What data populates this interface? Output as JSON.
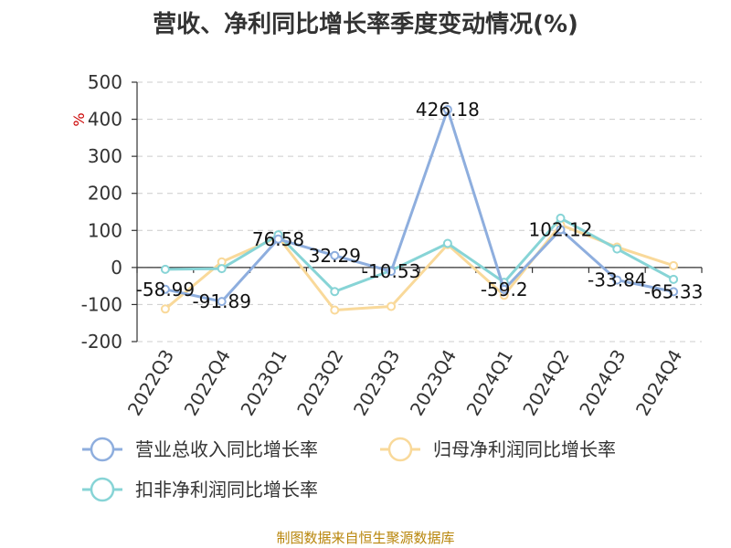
{
  "chart_data": {
    "type": "line",
    "title": "营收、净利同比增长率季度变动情况(%)",
    "ylabel": "%",
    "ylim": [
      -200,
      500
    ],
    "yticks": [
      500,
      400,
      300,
      200,
      100,
      0,
      -100,
      -200
    ],
    "grid": true,
    "legend": "bottom",
    "categories": [
      "2022Q3",
      "2022Q4",
      "2023Q1",
      "2023Q2",
      "2023Q3",
      "2023Q4",
      "2024Q1",
      "2024Q2",
      "2024Q3",
      "2024Q4"
    ],
    "series": [
      {
        "name": "营业总收入同比增长率",
        "color": "#8eaede",
        "values": [
          -58.99,
          -91.89,
          76.58,
          32.29,
          -10.53,
          426.18,
          -59.2,
          102.12,
          -33.84,
          -65.33
        ],
        "labels": [
          "-58.99",
          "-91.89",
          "76.58",
          "32.29",
          "-10.53",
          "426.18",
          "-59.2",
          "102.12",
          "-33.84",
          "-65.33"
        ]
      },
      {
        "name": "归母净利润同比增长率",
        "color": "#f9d99a",
        "values": [
          -112,
          15,
          82,
          -115,
          -105,
          62,
          -75,
          115,
          55,
          5
        ]
      },
      {
        "name": "扣非净利润同比增长率",
        "color": "#87d4d6",
        "values": [
          -5,
          -3,
          88,
          -65,
          -8,
          65,
          -40,
          133,
          50,
          -32
        ]
      }
    ]
  },
  "footer": "制图数据来自恒生聚源数据库"
}
